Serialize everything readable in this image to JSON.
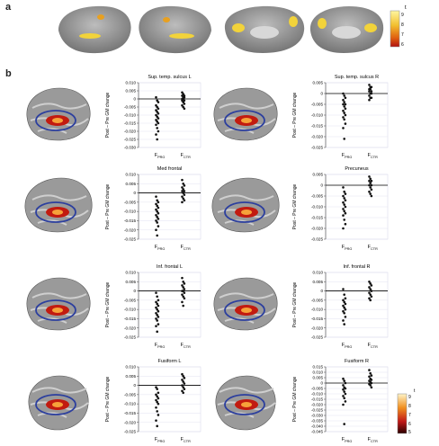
{
  "figure": {
    "panel_a_label": "a",
    "panel_b_label": "b",
    "colorbar_top": {
      "symbol": "t",
      "ticks": [
        "9",
        "8",
        "7",
        "6"
      ]
    },
    "colorbar_bottom": {
      "symbol": "t",
      "ticks": [
        "9",
        "8",
        "7",
        "6",
        "5"
      ]
    },
    "ylabel": "Post – Pre GM change"
  },
  "chart_data": [
    {
      "type": "scatter",
      "title": "Sup. temp. sulcus L",
      "ylabel": "Post – Pre GM change",
      "ylim": [
        -0.03,
        0.01
      ],
      "yticks": [
        "0.010",
        "0.005",
        "0",
        "-0.005",
        "-0.010",
        "-0.015",
        "-0.020",
        "-0.025",
        "-0.030"
      ],
      "categories": [
        {
          "main": "F",
          "sub": "PRG"
        },
        {
          "main": "F",
          "sub": "CTR"
        }
      ],
      "series": [
        {
          "values": [
            0.001,
            -0.001,
            -0.002,
            -0.004,
            -0.005,
            -0.006,
            -0.007,
            -0.008,
            -0.009,
            -0.01,
            -0.011,
            -0.012,
            -0.013,
            -0.014,
            -0.015,
            -0.016,
            -0.018,
            -0.02,
            -0.022,
            -0.025
          ]
        },
        {
          "values": [
            0.004,
            0.003,
            0.002,
            0.002,
            0.001,
            0.001,
            0.0,
            0.0,
            -0.001,
            -0.001,
            -0.002,
            -0.003,
            -0.004,
            -0.005,
            -0.006
          ]
        }
      ]
    },
    {
      "type": "scatter",
      "title": "Sup. temp. sulcus R",
      "ylabel": "Post – Pre GM change",
      "ylim": [
        -0.025,
        0.005
      ],
      "yticks": [
        "0.005",
        "0",
        "-0.005",
        "-0.010",
        "-0.015",
        "-0.020",
        "-0.025"
      ],
      "categories": [
        {
          "main": "F",
          "sub": "PRG"
        },
        {
          "main": "F",
          "sub": "CTR"
        }
      ],
      "series": [
        {
          "values": [
            0.0,
            -0.001,
            -0.002,
            -0.003,
            -0.004,
            -0.005,
            -0.005,
            -0.006,
            -0.007,
            -0.008,
            -0.009,
            -0.01,
            -0.011,
            -0.012,
            -0.014,
            -0.016,
            -0.021
          ]
        },
        {
          "values": [
            0.004,
            0.003,
            0.003,
            0.002,
            0.002,
            0.001,
            0.001,
            0.0,
            0.0,
            -0.001,
            -0.002,
            -0.002,
            -0.003
          ]
        }
      ]
    },
    {
      "type": "scatter",
      "title": "Med frontal",
      "ylabel": "Post – Pre GM change",
      "ylim": [
        -0.025,
        0.01
      ],
      "yticks": [
        "0.010",
        "0.005",
        "0",
        "-0.005",
        "-0.010",
        "-0.015",
        "-0.020",
        "-0.025"
      ],
      "categories": [
        {
          "main": "F",
          "sub": "PRG"
        },
        {
          "main": "F",
          "sub": "CTR"
        }
      ],
      "series": [
        {
          "values": [
            -0.002,
            -0.004,
            -0.005,
            -0.006,
            -0.007,
            -0.008,
            -0.009,
            -0.01,
            -0.011,
            -0.012,
            -0.013,
            -0.014,
            -0.015,
            -0.016,
            -0.018,
            -0.02,
            -0.023
          ]
        },
        {
          "values": [
            0.007,
            0.005,
            0.004,
            0.003,
            0.002,
            0.001,
            0.001,
            0.0,
            -0.001,
            -0.002,
            -0.003,
            -0.004,
            -0.005
          ]
        }
      ]
    },
    {
      "type": "scatter",
      "title": "Precuneus",
      "ylabel": "Post – Pre GM change",
      "ylim": [
        -0.025,
        0.005
      ],
      "yticks": [
        "0.005",
        "0",
        "-0.005",
        "-0.010",
        "-0.015",
        "-0.020",
        "-0.025"
      ],
      "categories": [
        {
          "main": "F",
          "sub": "PRG"
        },
        {
          "main": "F",
          "sub": "CTR"
        }
      ],
      "series": [
        {
          "values": [
            -0.001,
            -0.003,
            -0.004,
            -0.005,
            -0.006,
            -0.007,
            -0.008,
            -0.009,
            -0.01,
            -0.011,
            -0.012,
            -0.013,
            -0.014,
            -0.016,
            -0.018,
            -0.02
          ]
        },
        {
          "values": [
            0.004,
            0.003,
            0.002,
            0.002,
            0.001,
            0.0,
            0.0,
            -0.001,
            -0.002,
            -0.003,
            -0.004,
            -0.005
          ]
        }
      ]
    },
    {
      "type": "scatter",
      "title": "Inf. frontal L",
      "ylabel": "Post – Pre GM change",
      "ylim": [
        -0.025,
        0.01
      ],
      "yticks": [
        "0.010",
        "0.005",
        "0",
        "-0.005",
        "-0.010",
        "-0.015",
        "-0.020",
        "-0.025"
      ],
      "categories": [
        {
          "main": "F",
          "sub": "PRG"
        },
        {
          "main": "F",
          "sub": "CTR"
        }
      ],
      "series": [
        {
          "values": [
            -0.001,
            -0.003,
            -0.005,
            -0.006,
            -0.007,
            -0.008,
            -0.009,
            -0.01,
            -0.011,
            -0.012,
            -0.013,
            -0.014,
            -0.015,
            -0.016,
            -0.018,
            -0.019,
            -0.022
          ]
        },
        {
          "values": [
            0.007,
            0.005,
            0.004,
            0.003,
            0.002,
            0.001,
            0.0,
            0.0,
            -0.001,
            -0.002,
            -0.003,
            -0.004,
            -0.006,
            -0.008
          ]
        }
      ]
    },
    {
      "type": "scatter",
      "title": "Inf. frontal R",
      "ylabel": "Post – Pre GM change",
      "ylim": [
        -0.025,
        0.01
      ],
      "yticks": [
        "0.010",
        "0.005",
        "0",
        "-0.005",
        "-0.010",
        "-0.015",
        "-0.020",
        "-0.025"
      ],
      "categories": [
        {
          "main": "F",
          "sub": "PRG"
        },
        {
          "main": "F",
          "sub": "CTR"
        }
      ],
      "series": [
        {
          "values": [
            0.001,
            -0.002,
            -0.004,
            -0.005,
            -0.006,
            -0.007,
            -0.008,
            -0.009,
            -0.01,
            -0.011,
            -0.012,
            -0.014,
            -0.016,
            -0.018
          ]
        },
        {
          "values": [
            0.005,
            0.004,
            0.003,
            0.002,
            0.001,
            0.0,
            -0.001,
            -0.002,
            -0.003,
            -0.004,
            -0.005
          ]
        }
      ]
    },
    {
      "type": "scatter",
      "title": "Fusiform L",
      "ylabel": "Post – Pre GM change",
      "ylim": [
        -0.025,
        0.01
      ],
      "yticks": [
        "0.010",
        "0.005",
        "0",
        "-0.005",
        "-0.010",
        "-0.015",
        "-0.020",
        "-0.025"
      ],
      "categories": [
        {
          "main": "F",
          "sub": "PRG"
        },
        {
          "main": "F",
          "sub": "CTR"
        }
      ],
      "series": [
        {
          "values": [
            -0.001,
            -0.002,
            -0.004,
            -0.005,
            -0.006,
            -0.007,
            -0.008,
            -0.009,
            -0.01,
            -0.012,
            -0.014,
            -0.016,
            -0.019,
            -0.022
          ]
        },
        {
          "values": [
            0.006,
            0.005,
            0.004,
            0.003,
            0.002,
            0.001,
            0.0,
            -0.001,
            -0.002,
            -0.003,
            -0.004
          ]
        }
      ]
    },
    {
      "type": "scatter",
      "title": "Fusiform R",
      "ylabel": "Post – Pre GM change",
      "ylim": [
        -0.045,
        0.015
      ],
      "yticks": [
        "0.015",
        "0.010",
        "0.005",
        "0",
        "-0.005",
        "-0.010",
        "-0.015",
        "-0.020",
        "-0.025",
        "-0.030",
        "-0.035",
        "-0.040",
        "-0.045"
      ],
      "categories": [
        {
          "main": "F",
          "sub": "PRG"
        },
        {
          "main": "F",
          "sub": "CTR"
        }
      ],
      "series": [
        {
          "values": [
            0.004,
            0.002,
            0.0,
            -0.002,
            -0.004,
            -0.005,
            -0.006,
            -0.008,
            -0.01,
            -0.012,
            -0.014,
            -0.017,
            -0.02,
            -0.038
          ]
        },
        {
          "values": [
            0.012,
            0.009,
            0.007,
            0.006,
            0.004,
            0.003,
            0.002,
            0.001,
            0.0,
            -0.001,
            -0.002,
            -0.004
          ]
        }
      ]
    }
  ]
}
